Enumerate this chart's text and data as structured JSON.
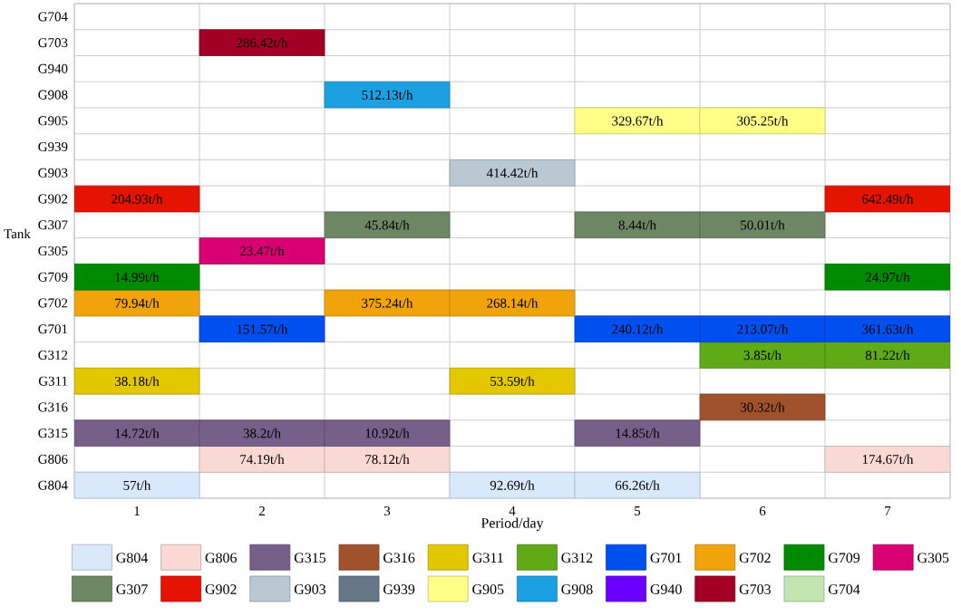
{
  "chart_data": {
    "type": "bar",
    "orientation": "horizontal",
    "xlabel": "Period/day",
    "ylabel": "Tank",
    "grid": true,
    "legend": "bottom",
    "categories": [
      "G704",
      "G703",
      "G940",
      "G908",
      "G905",
      "G939",
      "G903",
      "G902",
      "G307",
      "G305",
      "G709",
      "G702",
      "G701",
      "G312",
      "G311",
      "G316",
      "G315",
      "G806",
      "G804"
    ],
    "xlim": [
      0,
      7
    ],
    "xticks": [
      {
        "value": 0.5,
        "label": "1"
      },
      {
        "value": 1.5,
        "label": "2"
      },
      {
        "value": 2.5,
        "label": "3"
      },
      {
        "value": 3.5,
        "label": "4"
      },
      {
        "value": 4.5,
        "label": "5"
      },
      {
        "value": 5.5,
        "label": "6"
      },
      {
        "value": 6.5,
        "label": "7"
      }
    ],
    "series": [
      {
        "name": "G804",
        "color": "#dae8fc",
        "values": [
          null,
          null,
          null,
          null,
          null,
          null,
          null,
          null,
          null,
          null,
          null,
          null,
          null,
          null,
          null,
          null,
          null,
          null,
          1
        ],
        "base": [
          null,
          null,
          null,
          null,
          null,
          null,
          null,
          null,
          null,
          null,
          null,
          null,
          null,
          null,
          null,
          null,
          null,
          null,
          0
        ]
      },
      {
        "name": "G806",
        "color": "#fad9d5",
        "values": [
          null,
          null,
          null,
          null,
          null,
          null,
          null,
          null,
          null,
          null,
          null,
          null,
          null,
          null,
          null,
          null,
          null,
          1,
          null
        ],
        "base": [
          null,
          null,
          null,
          null,
          null,
          null,
          null,
          null,
          null,
          null,
          null,
          null,
          null,
          null,
          null,
          null,
          null,
          1,
          null
        ]
      },
      {
        "name": "G315",
        "color": "#76608a",
        "values": [
          null,
          null,
          null,
          null,
          null,
          null,
          null,
          null,
          null,
          null,
          null,
          null,
          null,
          null,
          null,
          null,
          1,
          null,
          null
        ],
        "base": [
          null,
          null,
          null,
          null,
          null,
          null,
          null,
          null,
          null,
          null,
          null,
          null,
          null,
          null,
          null,
          null,
          0,
          null,
          null
        ]
      },
      {
        "name": "G316",
        "color": "#a0522d",
        "values": [
          null,
          null,
          null,
          null,
          null,
          null,
          null,
          null,
          null,
          null,
          null,
          null,
          null,
          null,
          null,
          1,
          null,
          null,
          null
        ],
        "base": [
          null,
          null,
          null,
          null,
          null,
          null,
          null,
          null,
          null,
          null,
          null,
          null,
          null,
          null,
          null,
          5,
          null,
          null,
          null
        ]
      },
      {
        "name": "G311",
        "color": "#e3c800",
        "values": [
          null,
          null,
          null,
          null,
          null,
          null,
          null,
          null,
          null,
          null,
          null,
          null,
          null,
          null,
          1,
          null,
          null,
          null,
          null
        ],
        "base": [
          null,
          null,
          null,
          null,
          null,
          null,
          null,
          null,
          null,
          null,
          null,
          null,
          null,
          null,
          0,
          null,
          null,
          null,
          null
        ]
      },
      {
        "name": "G312",
        "color": "#60a917",
        "values": [
          null,
          null,
          null,
          null,
          null,
          null,
          null,
          null,
          null,
          null,
          null,
          null,
          null,
          1,
          null,
          null,
          null,
          null,
          null
        ],
        "base": [
          null,
          null,
          null,
          null,
          null,
          null,
          null,
          null,
          null,
          null,
          null,
          null,
          null,
          5,
          null,
          null,
          null,
          null,
          null
        ]
      },
      {
        "name": "G701",
        "color": "#0050ef",
        "values": [
          null,
          null,
          null,
          null,
          null,
          null,
          null,
          null,
          null,
          null,
          null,
          null,
          1,
          null,
          null,
          null,
          null,
          null,
          null
        ],
        "base": [
          null,
          null,
          null,
          null,
          null,
          null,
          null,
          null,
          null,
          null,
          null,
          null,
          1,
          null,
          null,
          null,
          null,
          null,
          null
        ]
      },
      {
        "name": "G702",
        "color": "#f0a30a",
        "values": [
          null,
          null,
          null,
          null,
          null,
          null,
          null,
          null,
          null,
          null,
          null,
          1,
          null,
          null,
          null,
          null,
          null,
          null,
          null
        ],
        "base": [
          null,
          null,
          null,
          null,
          null,
          null,
          null,
          null,
          null,
          null,
          null,
          0,
          null,
          null,
          null,
          null,
          null,
          null,
          null
        ]
      },
      {
        "name": "G709",
        "color": "#008a00",
        "values": [
          null,
          null,
          null,
          null,
          null,
          null,
          null,
          null,
          null,
          null,
          1,
          null,
          null,
          null,
          null,
          null,
          null,
          null,
          null
        ],
        "base": [
          null,
          null,
          null,
          null,
          null,
          null,
          null,
          null,
          null,
          null,
          0,
          null,
          null,
          null,
          null,
          null,
          null,
          null,
          null
        ]
      },
      {
        "name": "G305",
        "color": "#d80073",
        "values": [
          null,
          null,
          null,
          null,
          null,
          null,
          null,
          null,
          null,
          1,
          null,
          null,
          null,
          null,
          null,
          null,
          null,
          null,
          null
        ],
        "base": [
          null,
          null,
          null,
          null,
          null,
          null,
          null,
          null,
          null,
          1,
          null,
          null,
          null,
          null,
          null,
          null,
          null,
          null,
          null
        ]
      },
      {
        "name": "G307",
        "color": "#6d8764",
        "values": [
          null,
          null,
          null,
          null,
          null,
          null,
          null,
          null,
          1,
          null,
          null,
          null,
          null,
          null,
          null,
          null,
          null,
          null,
          null
        ],
        "base": [
          null,
          null,
          null,
          null,
          null,
          null,
          null,
          null,
          2,
          null,
          null,
          null,
          null,
          null,
          null,
          null,
          null,
          null,
          null
        ]
      },
      {
        "name": "G902",
        "color": "#e51400",
        "values": [
          null,
          null,
          null,
          null,
          null,
          null,
          null,
          1,
          null,
          null,
          null,
          null,
          null,
          null,
          null,
          null,
          null,
          null,
          null
        ],
        "base": [
          null,
          null,
          null,
          null,
          null,
          null,
          null,
          0,
          null,
          null,
          null,
          null,
          null,
          null,
          null,
          null,
          null,
          null,
          null
        ]
      },
      {
        "name": "G903",
        "color": "#bac8d3",
        "values": [
          null,
          null,
          null,
          null,
          null,
          null,
          1,
          null,
          null,
          null,
          null,
          null,
          null,
          null,
          null,
          null,
          null,
          null,
          null
        ],
        "base": [
          null,
          null,
          null,
          null,
          null,
          null,
          3,
          null,
          null,
          null,
          null,
          null,
          null,
          null,
          null,
          null,
          null,
          null,
          null
        ]
      },
      {
        "name": "G939",
        "color": "#647687",
        "values": [
          null,
          null,
          null,
          null,
          null,
          null,
          null,
          null,
          null,
          null,
          null,
          null,
          null,
          null,
          null,
          null,
          null,
          null,
          null
        ]
      },
      {
        "name": "G905",
        "color": "#ffff88",
        "values": [
          null,
          null,
          null,
          null,
          1,
          null,
          null,
          null,
          null,
          null,
          null,
          null,
          null,
          null,
          null,
          null,
          null,
          null,
          null
        ],
        "base": [
          null,
          null,
          null,
          null,
          4,
          null,
          null,
          null,
          null,
          null,
          null,
          null,
          null,
          null,
          null,
          null,
          null,
          null,
          null
        ]
      },
      {
        "name": "G908",
        "color": "#1ba1e2",
        "values": [
          null,
          null,
          null,
          1,
          null,
          null,
          null,
          null,
          null,
          null,
          null,
          null,
          null,
          null,
          null,
          null,
          null,
          null,
          null
        ],
        "base": [
          null,
          null,
          null,
          2,
          null,
          null,
          null,
          null,
          null,
          null,
          null,
          null,
          null,
          null,
          null,
          null,
          null,
          null,
          null
        ]
      },
      {
        "name": "G940",
        "color": "#6a00ff",
        "values": [
          null,
          null,
          null,
          null,
          null,
          null,
          null,
          null,
          null,
          null,
          null,
          null,
          null,
          null,
          null,
          null,
          null,
          null,
          null
        ]
      },
      {
        "name": "G703",
        "color": "#a20025",
        "values": [
          null,
          1,
          null,
          null,
          null,
          null,
          null,
          null,
          null,
          null,
          null,
          null,
          null,
          null,
          null,
          null,
          null,
          null,
          null
        ],
        "base": [
          null,
          1,
          null,
          null,
          null,
          null,
          null,
          null,
          null,
          null,
          null,
          null,
          null,
          null,
          null,
          null,
          null,
          null,
          null
        ]
      },
      {
        "name": "G704",
        "color": "#c3e6b0",
        "values": [
          null,
          null,
          null,
          null,
          null,
          null,
          null,
          null,
          null,
          null,
          null,
          null,
          null,
          null,
          null,
          null,
          null,
          null,
          null
        ]
      },
      {
        "colors": [
          null,
          null,
          null,
          null,
          "#ffff88",
          null,
          null,
          "#e51400",
          "#6d8764",
          null,
          "#008a00",
          "#f0a30a",
          "#0050ef",
          "#60a917",
          "#e3c800",
          null,
          "#76608a",
          "#fad9d5",
          "#dae8fc"
        ],
        "values": [
          null,
          null,
          null,
          null,
          1,
          null,
          null,
          1,
          1,
          null,
          1,
          1,
          1,
          1,
          1,
          null,
          1,
          1,
          1
        ],
        "base": [
          null,
          null,
          null,
          null,
          5,
          null,
          null,
          6,
          4,
          null,
          6,
          2,
          4,
          6,
          3,
          null,
          1,
          2,
          3
        ]
      },
      {
        "colors": [
          null,
          null,
          null,
          null,
          null,
          null,
          null,
          null,
          "#6d8764",
          null,
          null,
          "#f0a30a",
          "#0050ef",
          null,
          null,
          null,
          "#76608a",
          "#fad9d5",
          "#dae8fc"
        ],
        "values": [
          null,
          null,
          null,
          null,
          null,
          null,
          null,
          null,
          1,
          null,
          null,
          1,
          1,
          null,
          null,
          null,
          1,
          1,
          1
        ],
        "base": [
          null,
          null,
          null,
          null,
          null,
          null,
          null,
          null,
          5,
          null,
          null,
          3,
          5,
          null,
          null,
          null,
          2,
          6,
          4
        ]
      },
      {
        "colors": [
          null,
          null,
          null,
          null,
          null,
          null,
          null,
          null,
          null,
          null,
          null,
          null,
          "#0050ef",
          null,
          null,
          null,
          "#76608a",
          null,
          null
        ],
        "values": [
          null,
          null,
          null,
          null,
          null,
          null,
          null,
          null,
          null,
          null,
          null,
          null,
          1,
          null,
          null,
          null,
          1,
          null,
          null
        ],
        "base": [
          null,
          null,
          null,
          null,
          null,
          null,
          null,
          null,
          null,
          null,
          null,
          null,
          6,
          null,
          null,
          null,
          4,
          null,
          null
        ]
      }
    ],
    "annotations": [
      {
        "text": "286.42t/h",
        "x": 1.5,
        "y": "G703"
      },
      {
        "text": "512.13t/h",
        "x": 2.5,
        "y": "G908"
      },
      {
        "text": "329.67t/h",
        "x": 4.5,
        "y": "G905"
      },
      {
        "text": "305.25t/h",
        "x": 5.5,
        "y": "G905"
      },
      {
        "text": "414.42t/h",
        "x": 3.5,
        "y": "G903"
      },
      {
        "text": "204.93t/h",
        "x": 0.5,
        "y": "G902"
      },
      {
        "text": "642.49t/h",
        "x": 6.5,
        "y": "G902"
      },
      {
        "text": "45.84t/h",
        "x": 2.5,
        "y": "G307"
      },
      {
        "text": "8.44t/h",
        "x": 4.5,
        "y": "G307"
      },
      {
        "text": "50.01t/h",
        "x": 5.5,
        "y": "G307"
      },
      {
        "text": "23.47t/h",
        "x": 1.5,
        "y": "G305"
      },
      {
        "text": "14.99t/h",
        "x": 0.5,
        "y": "G709"
      },
      {
        "text": "24.97t/h",
        "x": 6.5,
        "y": "G709"
      },
      {
        "text": "79.94t/h",
        "x": 0.5,
        "y": "G702"
      },
      {
        "text": "375.24t/h",
        "x": 2.5,
        "y": "G702"
      },
      {
        "text": "268.14t/h",
        "x": 3.5,
        "y": "G702"
      },
      {
        "text": "151.57t/h",
        "x": 1.5,
        "y": "G701"
      },
      {
        "text": "240.12t/h",
        "x": 4.5,
        "y": "G701"
      },
      {
        "text": "213.07t/h",
        "x": 5.5,
        "y": "G701"
      },
      {
        "text": "361.63t/h",
        "x": 6.5,
        "y": "G701"
      },
      {
        "text": "3.85t/h",
        "x": 5.5,
        "y": "G312"
      },
      {
        "text": "81.22t/h",
        "x": 6.5,
        "y": "G312"
      },
      {
        "text": "38.18t/h",
        "x": 0.5,
        "y": "G311"
      },
      {
        "text": "53.59t/h",
        "x": 3.5,
        "y": "G311"
      },
      {
        "text": "30.32t/h",
        "x": 5.5,
        "y": "G316"
      },
      {
        "text": "14.72t/h",
        "x": 0.5,
        "y": "G315"
      },
      {
        "text": "38.2t/h",
        "x": 1.5,
        "y": "G315"
      },
      {
        "text": "10.92t/h",
        "x": 2.5,
        "y": "G315"
      },
      {
        "text": "14.85t/h",
        "x": 4.5,
        "y": "G315"
      },
      {
        "text": "74.19t/h",
        "x": 1.5,
        "y": "G806"
      },
      {
        "text": "78.12t/h",
        "x": 2.5,
        "y": "G806"
      },
      {
        "text": "174.67t/h",
        "x": 6.5,
        "y": "G806"
      },
      {
        "text": "57t/h",
        "x": 0.5,
        "y": "G804"
      },
      {
        "text": "92.69t/h",
        "x": 3.5,
        "y": "G804"
      },
      {
        "text": "66.26t/h",
        "x": 4.5,
        "y": "G804"
      }
    ]
  }
}
